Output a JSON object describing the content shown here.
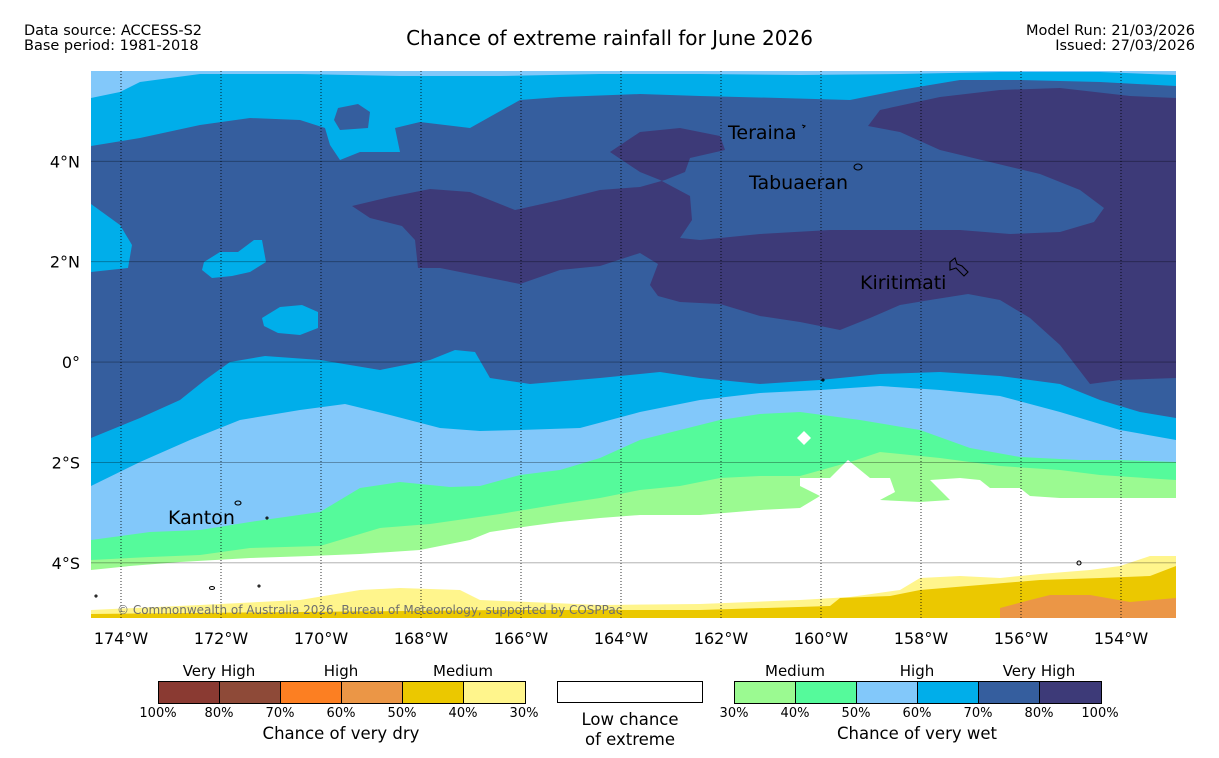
{
  "header": {
    "data_source": "Data source: ACCESS-S2",
    "base_period": "Base period: 1981-2018",
    "title": "Chance of extreme rainfall for June 2026",
    "model_run": "Model Run: 21/03/2026",
    "issued": "Issued: 27/03/2026"
  },
  "map": {
    "lon_range": [
      -174.6,
      -152.9
    ],
    "lat_range": [
      -5.1,
      5.8
    ],
    "x_ticks": [
      "174°W",
      "172°W",
      "170°W",
      "168°W",
      "166°W",
      "164°W",
      "162°W",
      "160°W",
      "158°W",
      "156°W",
      "154°W"
    ],
    "y_ticks": [
      "4°N",
      "2°N",
      "0°",
      "2°S",
      "4°S"
    ],
    "places": [
      {
        "name": "Teraina",
        "lon": -160.4,
        "lat": 4.7
      },
      {
        "name": "Tabuaeran",
        "lon": -159.4,
        "lat": 3.9
      },
      {
        "name": "Kiritimati",
        "lon": -157.4,
        "lat": 1.9
      },
      {
        "name": "Kanton",
        "lon": -171.7,
        "lat": -2.8
      }
    ],
    "copyright": "© Commonwealth of Australia 2026, Bureau of Meteorology, supported by COSPPac",
    "colors": {
      "very_wet_80_100": "#3d3a78",
      "very_wet_70_80": "#355e9e",
      "high_60_70": "#00aeea",
      "high_50_60": "#82c8fa",
      "medium_40_50": "#55fa9b",
      "medium_30_40": "#9bfa91",
      "low": "#ffffff",
      "dry_30_40": "#fff58c",
      "dry_40_50": "#ebc800",
      "dry_50_60": "#eb9646"
    }
  },
  "legend": {
    "dry": {
      "categories": [
        "Very High",
        "High",
        "Medium"
      ],
      "colors": [
        "#8a3a32",
        "#8e4a38",
        "#fc7f22",
        "#eb9646",
        "#ebc800",
        "#fff58c"
      ],
      "ticks": [
        "100%",
        "80%",
        "70%",
        "60%",
        "50%",
        "40%",
        "30%"
      ],
      "caption": "Chance of very dry"
    },
    "low": {
      "line1": "Low chance",
      "line2": "of extreme"
    },
    "wet": {
      "categories": [
        "Medium",
        "High",
        "Very High"
      ],
      "colors": [
        "#9bfa91",
        "#55fa9b",
        "#82c8fa",
        "#00aeea",
        "#355e9e",
        "#3d3a78"
      ],
      "ticks": [
        "30%",
        "40%",
        "50%",
        "60%",
        "70%",
        "80%",
        "100%"
      ],
      "caption": "Chance of very wet"
    }
  }
}
